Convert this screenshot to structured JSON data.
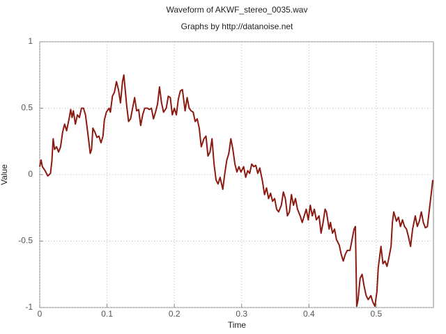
{
  "chart_data": {
    "type": "line",
    "title": "Waveform of AKWF_stereo_0035.wav",
    "subtitle": "Graphs by http://datanoise.net",
    "xlabel": "Time",
    "ylabel": "Value",
    "color": "#8b1a10",
    "grid": true,
    "xlim": [
      0,
      0.585
    ],
    "ylim": [
      -1,
      1
    ],
    "xticks": [
      0,
      0.1,
      0.2,
      0.3,
      0.4,
      0.5
    ],
    "yticks": [
      -1,
      -0.5,
      0,
      0.5,
      1
    ],
    "x": [
      0,
      0.002,
      0.004,
      0.008,
      0.012,
      0.016,
      0.018,
      0.02,
      0.022,
      0.025,
      0.028,
      0.031,
      0.034,
      0.037,
      0.04,
      0.044,
      0.046,
      0.048,
      0.05,
      0.053,
      0.056,
      0.059,
      0.062,
      0.065,
      0.068,
      0.072,
      0.075,
      0.077,
      0.079,
      0.082,
      0.085,
      0.088,
      0.091,
      0.094,
      0.096,
      0.099,
      0.103,
      0.105,
      0.108,
      0.111,
      0.114,
      0.117,
      0.12,
      0.123,
      0.125,
      0.129,
      0.132,
      0.135,
      0.138,
      0.141,
      0.144,
      0.147,
      0.15,
      0.153,
      0.156,
      0.16,
      0.163,
      0.166,
      0.169,
      0.172,
      0.175,
      0.178,
      0.181,
      0.184,
      0.188,
      0.191,
      0.194,
      0.197,
      0.2,
      0.203,
      0.206,
      0.209,
      0.212,
      0.216,
      0.219,
      0.222,
      0.225,
      0.228,
      0.231,
      0.234,
      0.237,
      0.24,
      0.244,
      0.247,
      0.25,
      0.253,
      0.256,
      0.259,
      0.262,
      0.265,
      0.268,
      0.272,
      0.275,
      0.278,
      0.281,
      0.284,
      0.287,
      0.29,
      0.293,
      0.296,
      0.299,
      0.303,
      0.306,
      0.309,
      0.312,
      0.315,
      0.318,
      0.321,
      0.324,
      0.327,
      0.331,
      0.334,
      0.337,
      0.34,
      0.343,
      0.346,
      0.349,
      0.352,
      0.355,
      0.359,
      0.362,
      0.365,
      0.368,
      0.371,
      0.374,
      0.377,
      0.38,
      0.383,
      0.387,
      0.39,
      0.393,
      0.396,
      0.399,
      0.402,
      0.405,
      0.408,
      0.411,
      0.415,
      0.418,
      0.421,
      0.424,
      0.426,
      0.43,
      0.432,
      0.435,
      0.438,
      0.441,
      0.445,
      0.448,
      0.451,
      0.454,
      0.457,
      0.461,
      0.464,
      0.467,
      0.469,
      0.471,
      0.473,
      0.476,
      0.479,
      0.482,
      0.485,
      0.488,
      0.492,
      0.495,
      0.498,
      0.501,
      0.503,
      0.507,
      0.51,
      0.513,
      0.516,
      0.519,
      0.522,
      0.524,
      0.526,
      0.53,
      0.533,
      0.536,
      0.539,
      0.542,
      0.545,
      0.548,
      0.551,
      0.554,
      0.558,
      0.561,
      0.564,
      0.567,
      0.57,
      0.573,
      0.576,
      0.579,
      0.582,
      0.584
    ],
    "values": [
      0.06,
      0.11,
      0.06,
      0.03,
      -0.01,
      0.01,
      0.1,
      0.27,
      0.19,
      0.21,
      0.17,
      0.21,
      0.32,
      0.38,
      0.33,
      0.43,
      0.49,
      0.43,
      0.48,
      0.38,
      0.45,
      0.43,
      0.5,
      0.5,
      0.45,
      0.29,
      0.16,
      0.19,
      0.35,
      0.32,
      0.28,
      0.29,
      0.24,
      0.29,
      0.41,
      0.47,
      0.5,
      0.47,
      0.59,
      0.62,
      0.7,
      0.64,
      0.54,
      0.7,
      0.75,
      0.53,
      0.4,
      0.42,
      0.5,
      0.58,
      0.48,
      0.49,
      0.37,
      0.45,
      0.5,
      0.5,
      0.49,
      0.5,
      0.42,
      0.47,
      0.53,
      0.66,
      0.54,
      0.47,
      0.5,
      0.59,
      0.58,
      0.45,
      0.5,
      0.45,
      0.57,
      0.63,
      0.64,
      0.48,
      0.58,
      0.5,
      0.48,
      0.47,
      0.4,
      0.42,
      0.35,
      0.21,
      0.27,
      0.29,
      0.14,
      0.17,
      0.27,
      0.08,
      -0.04,
      -0.07,
      -0.02,
      -0.11,
      0.01,
      0.11,
      0.16,
      0.27,
      0.19,
      0.08,
      0.02,
      0.06,
      0.02,
      0.06,
      -0.02,
      0.03,
      0.01,
      0.08,
      0.06,
      0.07,
      0.01,
      0.05,
      -0.05,
      -0.15,
      -0.1,
      -0.18,
      -0.14,
      -0.2,
      -0.18,
      -0.26,
      -0.28,
      -0.23,
      -0.13,
      -0.18,
      -0.31,
      -0.28,
      -0.15,
      -0.23,
      -0.18,
      -0.26,
      -0.31,
      -0.36,
      -0.31,
      -0.26,
      -0.34,
      -0.23,
      -0.31,
      -0.26,
      -0.34,
      -0.31,
      -0.44,
      -0.36,
      -0.26,
      -0.28,
      -0.41,
      -0.36,
      -0.44,
      -0.41,
      -0.49,
      -0.53,
      -0.6,
      -0.65,
      -0.6,
      -0.57,
      -0.57,
      -0.49,
      -0.41,
      -0.39,
      -0.99,
      -0.94,
      -0.78,
      -0.75,
      -0.84,
      -0.91,
      -0.94,
      -0.91,
      -0.96,
      -0.99,
      -0.88,
      -0.7,
      -0.54,
      -0.67,
      -0.65,
      -0.69,
      -0.62,
      -0.54,
      -0.36,
      -0.28,
      -0.35,
      -0.32,
      -0.39,
      -0.34,
      -0.39,
      -0.41,
      -0.47,
      -0.54,
      -0.41,
      -0.31,
      -0.39,
      -0.35,
      -0.28,
      -0.36,
      -0.4,
      -0.39,
      -0.26,
      -0.13,
      -0.04
    ]
  }
}
